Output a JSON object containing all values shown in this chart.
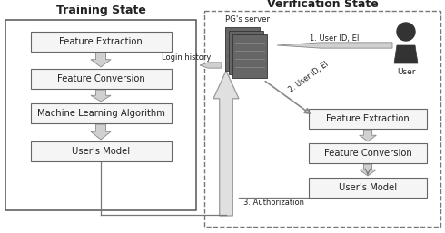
{
  "title_left": "Training State",
  "title_right": "Verification State",
  "server_label": "PG's server",
  "user_label": "User",
  "left_boxes": [
    "Feature Extraction",
    "Feature Conversion",
    "Machine Learning Algorithm",
    "User's Model"
  ],
  "right_boxes": [
    "Feature Extraction",
    "Feature Conversion",
    "User's Model"
  ],
  "arrow_login": "Login history",
  "arrow1": "1. User ID, EI",
  "arrow2": "2. User ID, EI",
  "arrow3": "3. Authorization",
  "bg_color": "#ffffff",
  "box_fill": "#f5f5f5",
  "box_edge": "#666666",
  "arrow_fill": "#d0d0d0",
  "arrow_edge": "#888888",
  "big_arrow_fill": "#e0e0e0",
  "big_arrow_edge": "#999999",
  "dashed_border": "#777777",
  "solid_border": "#555555",
  "text_color": "#222222",
  "server_dark": "#555555",
  "server_light": "#888888"
}
